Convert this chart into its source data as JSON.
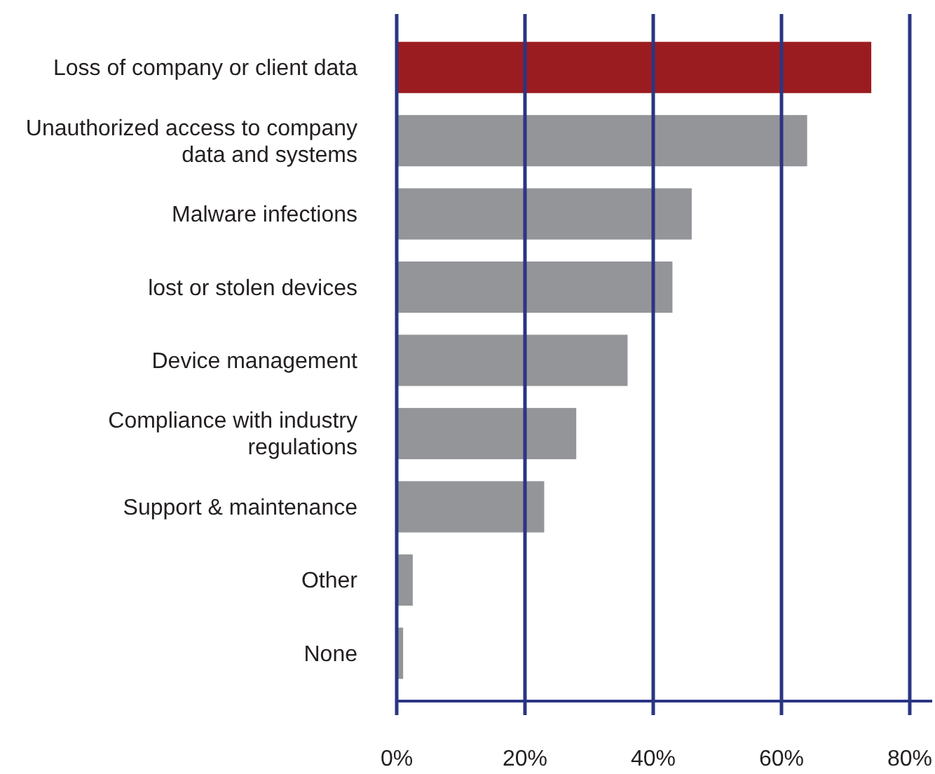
{
  "chart_data": {
    "type": "bar",
    "orientation": "horizontal",
    "categories": [
      "Loss of company or client data",
      "Unauthorized access to company data and systems",
      "Malware infections",
      "lost or stolen devices",
      "Device management",
      "Compliance with industry regulations",
      "Support & maintenance",
      "Other",
      "None"
    ],
    "values": [
      74,
      64,
      46,
      43,
      36,
      28,
      23,
      2.5,
      1
    ],
    "colors": [
      "#9b1c20",
      "#939598",
      "#939598",
      "#939598",
      "#939598",
      "#939598",
      "#939598",
      "#939598",
      "#939598"
    ],
    "xlim": [
      0,
      83.5
    ],
    "xticks": [
      {
        "value": 0,
        "label": "0%"
      },
      {
        "value": 20,
        "label": "20%"
      },
      {
        "value": 40,
        "label": "40%"
      },
      {
        "value": 60,
        "label": "60%"
      },
      {
        "value": 80,
        "label": "80%"
      }
    ],
    "grid": "x"
  }
}
